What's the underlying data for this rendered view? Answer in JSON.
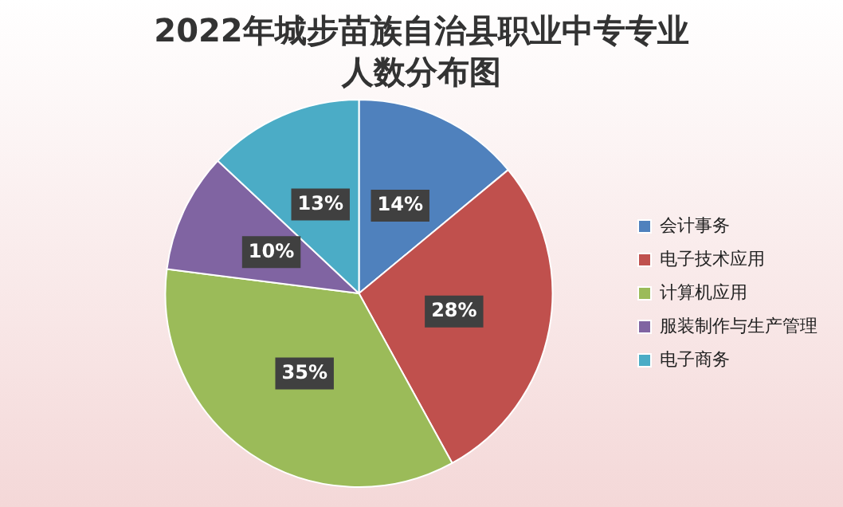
{
  "chart_data": {
    "type": "pie",
    "title": "2022年城步苗族自治县职业中专专业人数分布图",
    "categories": [
      "会计事务",
      "电子技术应用",
      "计算机应用",
      "服装制作与生产管理",
      "电子商务"
    ],
    "values": [
      14,
      28,
      35,
      10,
      13
    ],
    "colors": [
      "#4f81bd",
      "#c0504d",
      "#9bbb59",
      "#8064a2",
      "#4bacc6"
    ],
    "value_labels": [
      "14%",
      "28%",
      "35%",
      "10%",
      "13%"
    ],
    "legend": "right"
  }
}
